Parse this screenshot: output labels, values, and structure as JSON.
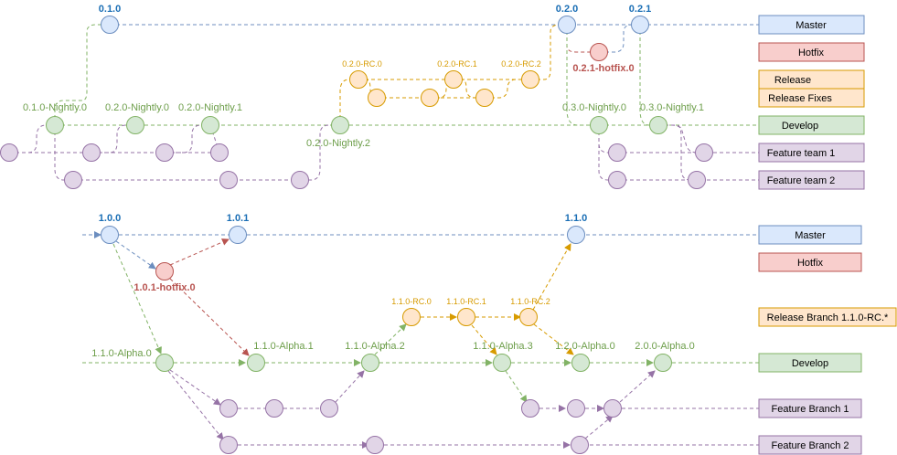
{
  "colors": {
    "master": "#dae8fc",
    "master_stroke": "#6c8ebf",
    "master_text": "#1a6eb5",
    "hotfix": "#f8cecc",
    "hotfix_stroke": "#b85450",
    "hotfix_text": "#b85450",
    "release": "#ffe6cc",
    "release_stroke": "#d79b00",
    "release_text": "#d79b00",
    "develop": "#d5e8d4",
    "develop_stroke": "#82b366",
    "develop_text": "#6d9e4a",
    "feature": "#e1d5e7",
    "feature_stroke": "#9673a6"
  },
  "top": {
    "legend": {
      "master": "Master",
      "hotfix": "Hotfix",
      "release": "Release",
      "release_fixes": "Release Fixes",
      "develop": "Develop",
      "feature1": "Feature team 1",
      "feature2": "Feature team 2"
    },
    "tags": {
      "m1": "0.1.0",
      "m2": "0.2.0",
      "m3": "0.2.1",
      "hotfix": "0.2.1-hotfix.0",
      "rc0": "0.2.0-RC.0",
      "rc1": "0.2.0-RC.1",
      "rc2": "0.2.0-RC.2",
      "n0": "0.1.0-Nightly.0",
      "n1": "0.2.0-Nightly.0",
      "n2": "0.2.0-Nightly.1",
      "n3": "0.2.0-Nightly.2",
      "n4": "0.3.0-Nightly.0",
      "n5": "0.3.0-Nightly.1"
    }
  },
  "bottom": {
    "legend": {
      "master": "Master",
      "hotfix": "Hotfix",
      "release": "Release Branch 1.1.0-RC.*",
      "develop": "Develop",
      "feature1": "Feature Branch 1",
      "feature2": "Feature Branch 2"
    },
    "tags": {
      "m1": "1.0.0",
      "m2": "1.0.1",
      "m3": "1.1.0",
      "hotfix": "1.0.1-hotfix.0",
      "rc0": "1.1.0-RC.0",
      "rc1": "1.1.0-RC.1",
      "rc2": "1.1.0-RC.2",
      "a0": "1.1.0-Alpha.0",
      "a1": "1.1.0-Alpha.1",
      "a2": "1.1.0-Alpha.2",
      "a3": "1.1.0-Alpha.3",
      "a4": "1.2.0-Alpha.0",
      "a5": "2.0.0-Alpha.0"
    }
  }
}
